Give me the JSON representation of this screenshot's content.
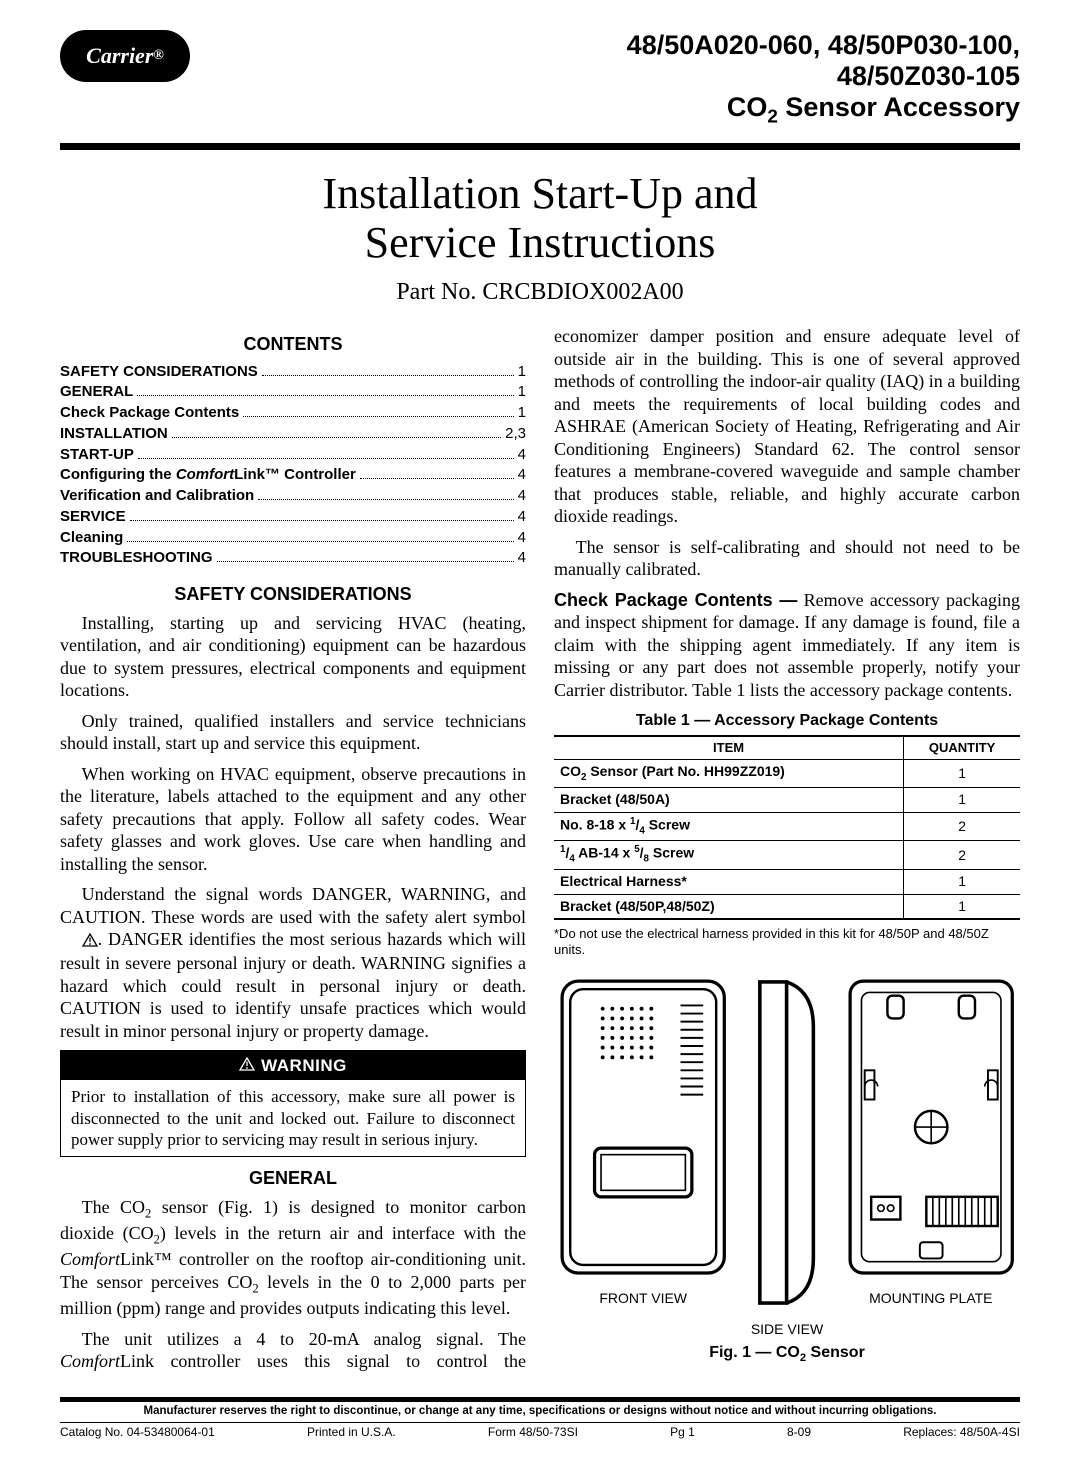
{
  "header": {
    "logo_text": "Carrier",
    "model_line1": "48/50A020-060, 48/50P030-100,",
    "model_line2": "48/50Z030-105",
    "subtitle_prefix": "CO",
    "subtitle_sub": "2",
    "subtitle_suffix": " Sensor Accessory"
  },
  "title": {
    "line1": "Installation Start-Up and",
    "line2": "Service Instructions",
    "part_no": "Part No. CRCBDIOX002A00"
  },
  "contents_head": "CONTENTS",
  "toc": [
    {
      "label": "SAFETY CONSIDERATIONS",
      "page": "1",
      "bold": true
    },
    {
      "label": "GENERAL",
      "page": "1",
      "bold": true
    },
    {
      "label": "Check Package Contents",
      "page": "1",
      "bold": true
    },
    {
      "label": "INSTALLATION",
      "page": "2,3",
      "bold": true
    },
    {
      "label": "START-UP",
      "page": "4",
      "bold": true
    },
    {
      "label_html": "Configuring the <i>Comfort</i>Link™ Controller",
      "page": "4",
      "bold": true
    },
    {
      "label": "Verification and Calibration",
      "page": "4",
      "bold": true
    },
    {
      "label": "SERVICE",
      "page": "4",
      "bold": true
    },
    {
      "label": "Cleaning",
      "page": "4",
      "bold": true
    },
    {
      "label": "TROUBLESHOOTING",
      "page": "4",
      "bold": true
    }
  ],
  "safety": {
    "head": "SAFETY CONSIDERATIONS",
    "p1": "Installing, starting up and servicing HVAC (heating, ventilation, and air conditioning) equipment can be hazardous due to system pressures, electrical components and equipment locations.",
    "p2": "Only trained, qualified installers and service technicians should install, start up and service this equipment.",
    "p3": "When working on HVAC equipment, observe precautions in the literature, labels attached to the equipment and any other safety precautions that apply. Follow all safety codes. Wear safety glasses and work gloves. Use care when handling and installing the sensor.",
    "p4_a": "Understand the signal words DANGER, WARNING, and CAUTION. These words are used with the safety alert symbol ",
    "p4_b": ". DANGER identifies the most serious hazards which will result in severe personal injury or death. WARNING signifies a hazard which could result in personal injury or death. CAUTION is used to identify unsafe practices which would result in minor personal injury or property damage."
  },
  "warning": {
    "head": "WARNING",
    "body": "Prior to installation of this accessory, make sure all power is disconnected to the unit and locked out. Failure to disconnect power supply prior to servicing may result in serious injury."
  },
  "general": {
    "head": "GENERAL",
    "p1_html": "The CO<sub>2</sub> sensor (Fig. 1) is designed to monitor carbon dioxide (CO<sub>2</sub>) levels in the return air and interface with the <i>Comfort</i>Link™ controller on the rooftop air-conditioning unit. The sensor perceives CO<sub>2</sub> levels in the 0 to 2,000 parts per million (ppm) range and provides outputs indicating this level.",
    "p2_html": "The unit utilizes a 4 to 20-mA analog signal. The <i>Comfort</i>Link controller uses this signal to control the economizer damper position and ensure adequate level of outside air in the building. This is one of several approved methods of controlling the indoor-air quality (IAQ) in a building and meets the requirements of local building codes and ASHRAE (American Society of Heating, Refrigerating and Air Conditioning Engineers) Standard 62. The control sensor features a membrane-covered waveguide and sample chamber that produces stable, reliable, and highly accurate carbon dioxide readings.",
    "p3": "The sensor is self-calibrating and should not need to be manually calibrated."
  },
  "check_contents": {
    "lead": "Check Package Contents —",
    "body": "Remove accessory packaging and inspect shipment for damage. If any damage is found, file a claim with the shipping agent immediately. If any item is missing or any part does not assemble properly, notify your Carrier distributor. Table 1 lists the accessory package contents."
  },
  "table1": {
    "caption": "Table 1 — Accessory Package Contents",
    "head_item": "ITEM",
    "head_qty": "QUANTITY",
    "rows": [
      {
        "item_html": "CO<sub>2</sub> Sensor (Part No. HH99ZZ019)",
        "qty": "1"
      },
      {
        "item_html": "Bracket (48/50A)",
        "qty": "1"
      },
      {
        "item_html": "No. 8-18 x <sup>1</sup>/<sub>4</sub> Screw",
        "qty": "2"
      },
      {
        "item_html": "<sup>1</sup>/<sub>4</sub> AB-14 x <sup>5</sup>/<sub>8</sub> Screw",
        "qty": "2"
      },
      {
        "item_html": "Electrical Harness*",
        "qty": "1"
      },
      {
        "item_html": "Bracket (48/50P,48/50Z)",
        "qty": "1"
      }
    ],
    "note": "*Do not use the electrical harness provided in this kit for 48/50P and 48/50Z units."
  },
  "figure": {
    "front": "FRONT VIEW",
    "side": "SIDE VIEW",
    "plate": "MOUNTING PLATE",
    "caption_prefix": "Fig. 1 — CO",
    "caption_sub": "2",
    "caption_suffix": " Sensor"
  },
  "footer": {
    "reserve": "Manufacturer reserves the right to discontinue, or change at any time, specifications or designs without notice and without incurring obligations.",
    "catalog": "Catalog No. 04-53480064-01",
    "printed": "Printed in U.S.A.",
    "form": "Form 48/50-73SI",
    "pg": "Pg 1",
    "date": "8-09",
    "replaces": "Replaces: 48/50A-4SI"
  }
}
